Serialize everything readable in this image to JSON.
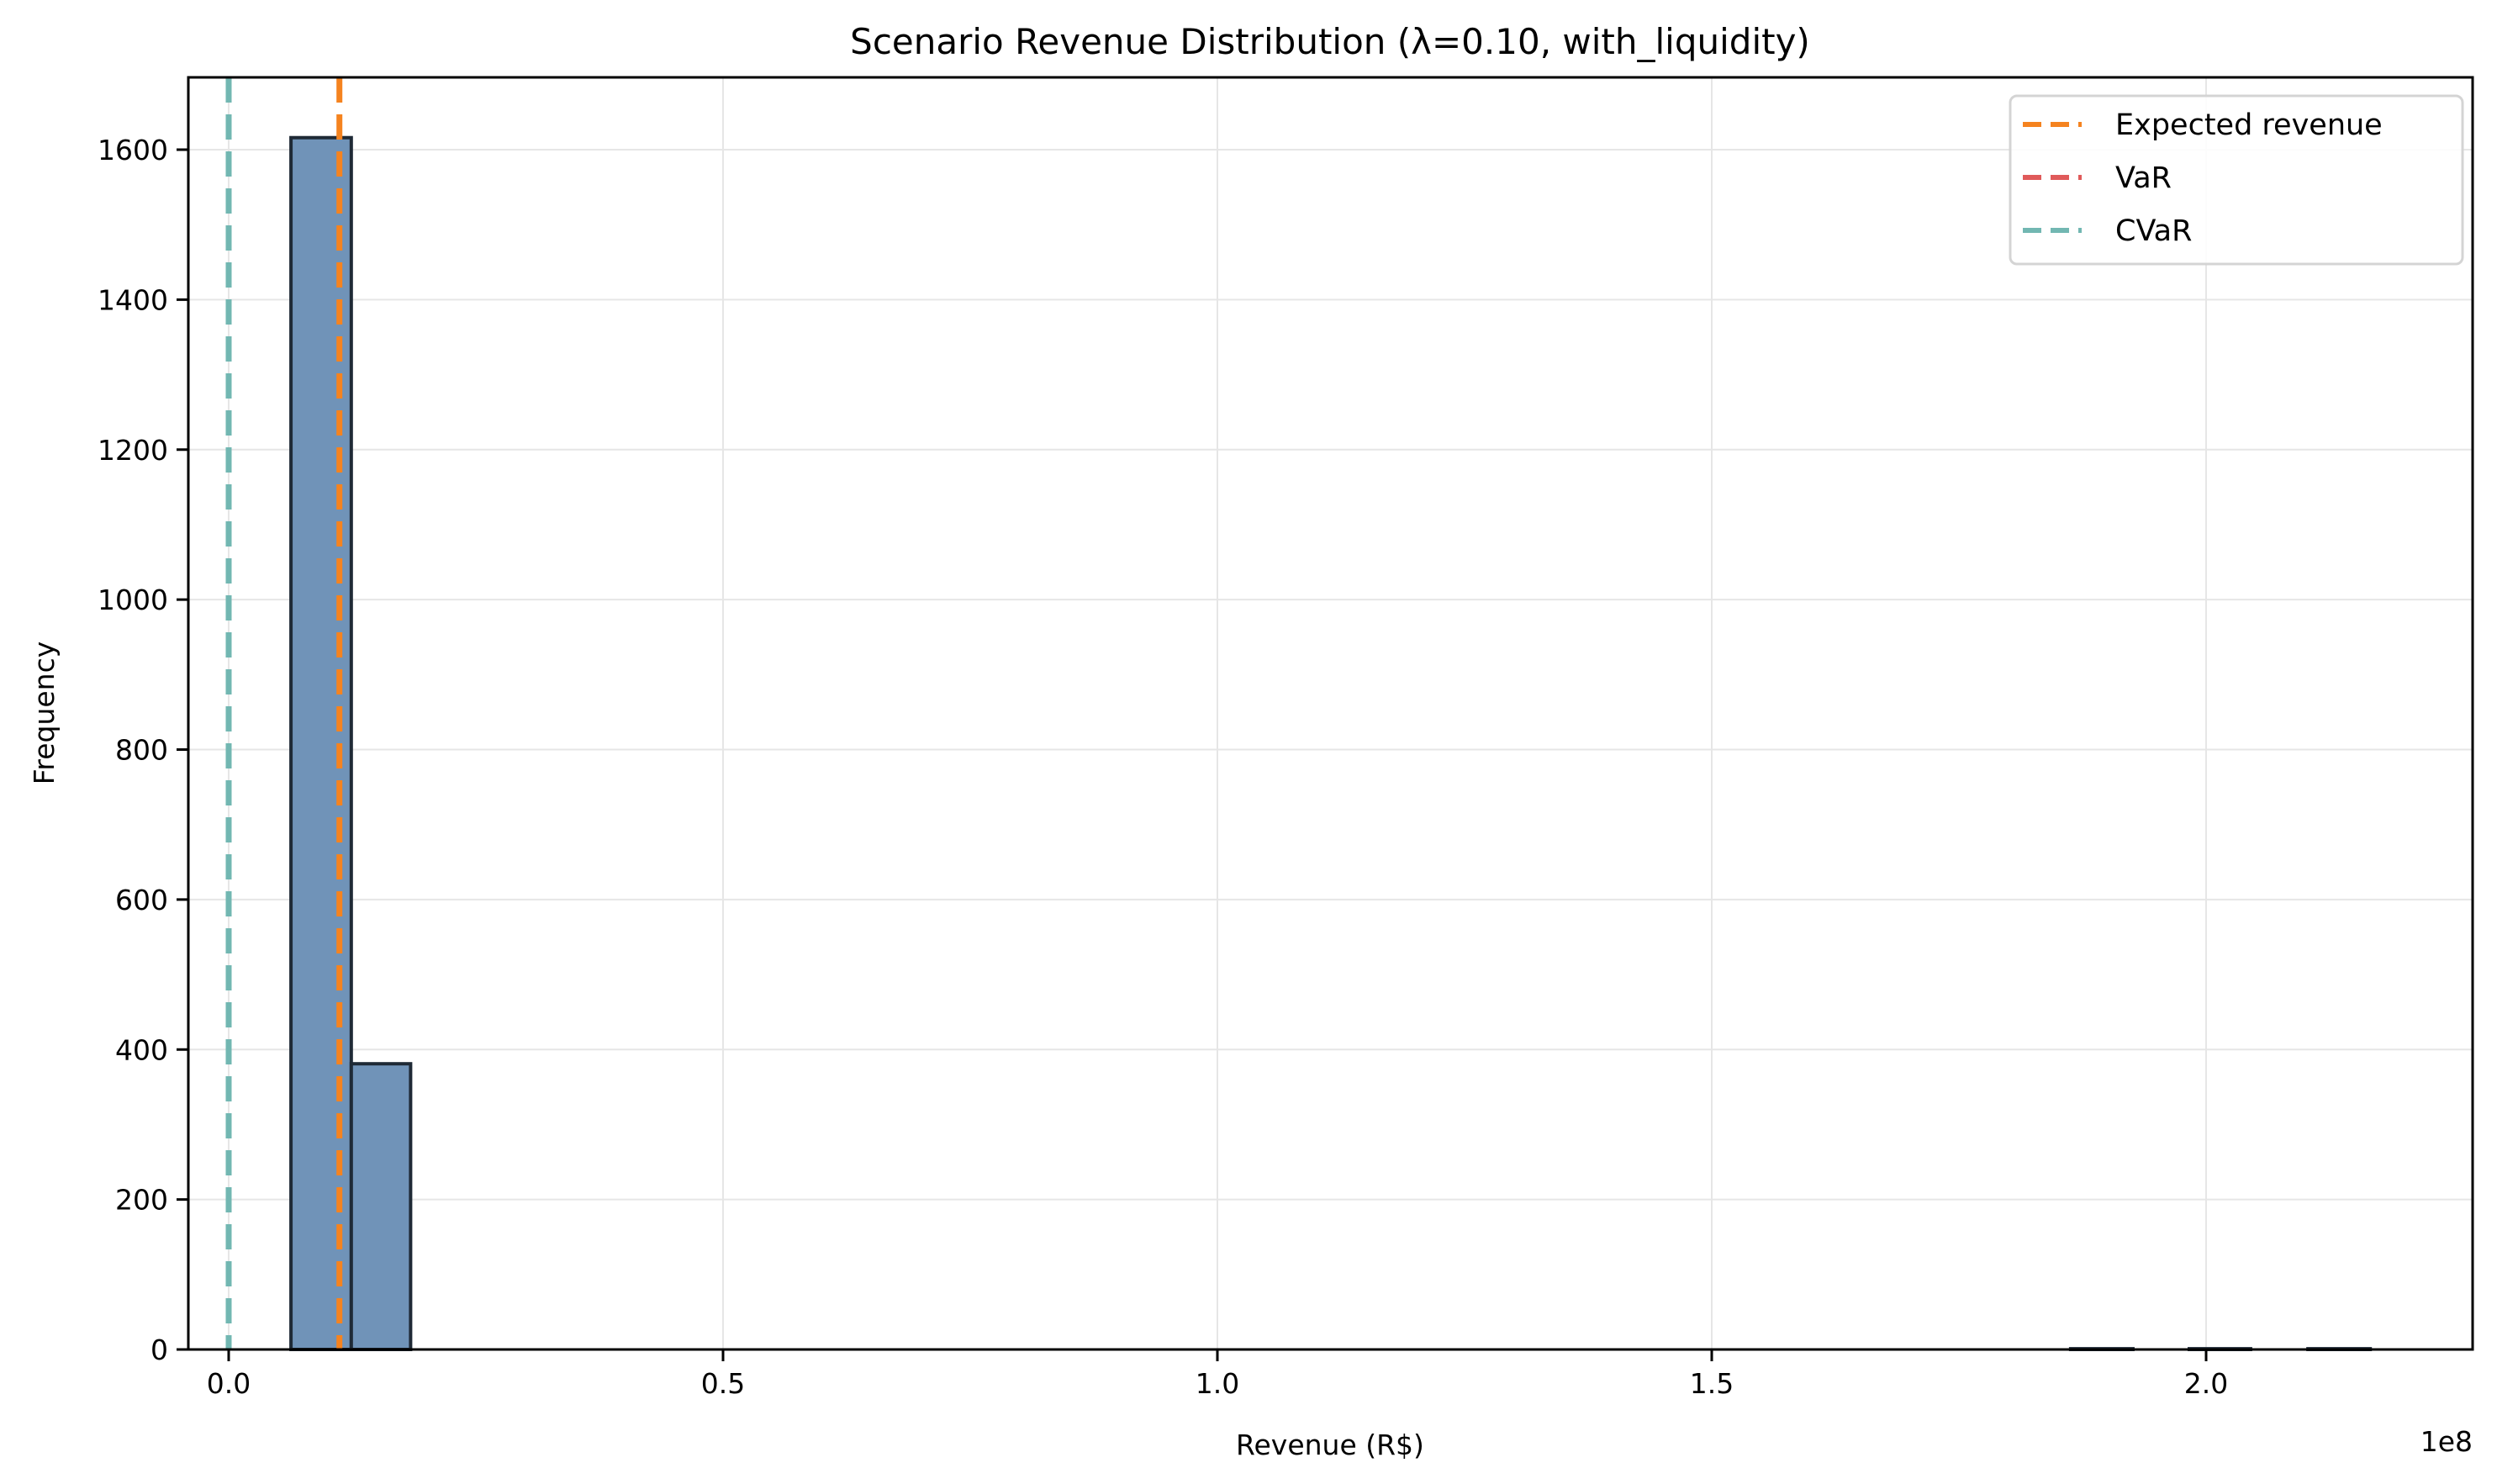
{
  "chart_data": {
    "type": "bar",
    "subtype": "histogram",
    "title": "Scenario Revenue Distribution (λ=0.10, with_liquidity)",
    "xlabel": "Revenue (R$)",
    "ylabel": "Frequency",
    "x_offset_label": "1e8",
    "xlim": [
      -0.08,
      2.27
    ],
    "ylim": [
      0,
      1695
    ],
    "x_ticks": [
      0.0,
      0.5,
      1.0,
      1.5,
      2.0
    ],
    "x_tick_labels": [
      "0.0",
      "0.5",
      "1.0",
      "1.5",
      "2.0"
    ],
    "y_ticks": [
      0,
      200,
      400,
      600,
      800,
      1000,
      1200,
      1400,
      1600
    ],
    "y_tick_labels": [
      "0",
      "200",
      "400",
      "600",
      "800",
      "1000",
      "1200",
      "1400",
      "1600"
    ],
    "grid": true,
    "bins": [
      {
        "x0": 0.063,
        "x1": 0.124,
        "count": 1616
      },
      {
        "x0": 0.124,
        "x1": 0.184,
        "count": 381
      },
      {
        "x0": 1.863,
        "x1": 1.926,
        "count": 1
      },
      {
        "x0": 1.983,
        "x1": 2.045,
        "count": 1
      },
      {
        "x0": 2.103,
        "x1": 2.166,
        "count": 1
      }
    ],
    "bar_color": "#7093b8",
    "bar_edge_color": "#1f2a36",
    "vlines": [
      {
        "name": "Expected revenue",
        "x": 0.112,
        "color": "#f5831f",
        "style": "dashed"
      },
      {
        "name": "VaR",
        "x": 0.0,
        "color": "#e05a5a",
        "style": "dashed"
      },
      {
        "name": "CVaR",
        "x": 0.0,
        "color": "#72b7b2",
        "style": "dashed"
      }
    ],
    "legend": {
      "position": "upper right",
      "entries": [
        "Expected revenue",
        "VaR",
        "CVaR"
      ]
    }
  },
  "labels": {
    "title": "Scenario Revenue Distribution (λ=0.10, with_liquidity)",
    "xlabel": "Revenue (R$)",
    "ylabel": "Frequency",
    "offset": "1e8",
    "legend": [
      "Expected revenue",
      "VaR",
      "CVaR"
    ]
  }
}
